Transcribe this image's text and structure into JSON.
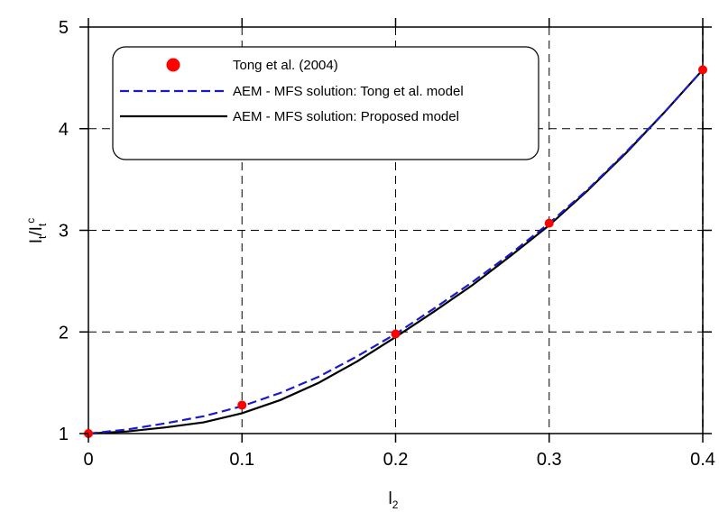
{
  "chart_data": {
    "type": "line",
    "xlabel": {
      "main": "l",
      "sub": "2"
    },
    "ylabel": {
      "main": "I",
      "sub": "t",
      "sep": "/I",
      "sub2": "t",
      "sup2": "c"
    },
    "xlim": [
      0,
      0.4
    ],
    "ylim": [
      1,
      5
    ],
    "x_ticks": [
      "0",
      "0.1",
      "0.2",
      "0.3",
      "0.4"
    ],
    "y_ticks": [
      "1",
      "2",
      "3",
      "4",
      "5"
    ],
    "grid": true,
    "grid_style": "dashed",
    "legend_position": "top-left",
    "series": [
      {
        "name": "Tong et al. (2004)",
        "style": "marker",
        "color": "#ff0000",
        "x": [
          0,
          0.1,
          0.2,
          0.3,
          0.4
        ],
        "y": [
          1.0,
          1.28,
          1.98,
          3.07,
          4.58
        ]
      },
      {
        "name": "AEM - MFS solution: Tong et al. model",
        "style": "dashed",
        "color": "#1a1acc",
        "x": [
          0,
          0.025,
          0.05,
          0.075,
          0.1,
          0.125,
          0.15,
          0.175,
          0.2,
          0.225,
          0.25,
          0.275,
          0.3,
          0.325,
          0.35,
          0.375,
          0.4
        ],
        "y": [
          1.0,
          1.04,
          1.1,
          1.17,
          1.27,
          1.4,
          1.56,
          1.76,
          1.98,
          2.23,
          2.49,
          2.77,
          3.07,
          3.4,
          3.77,
          4.16,
          4.58
        ]
      },
      {
        "name": "AEM - MFS solution: Proposed model",
        "style": "solid",
        "color": "#000000",
        "x": [
          0,
          0.025,
          0.05,
          0.075,
          0.1,
          0.125,
          0.15,
          0.175,
          0.2,
          0.225,
          0.25,
          0.275,
          0.3,
          0.325,
          0.35,
          0.375,
          0.4
        ],
        "y": [
          1.0,
          1.02,
          1.06,
          1.11,
          1.2,
          1.33,
          1.5,
          1.71,
          1.95,
          2.2,
          2.46,
          2.75,
          3.05,
          3.39,
          3.76,
          4.16,
          4.58
        ]
      }
    ]
  }
}
